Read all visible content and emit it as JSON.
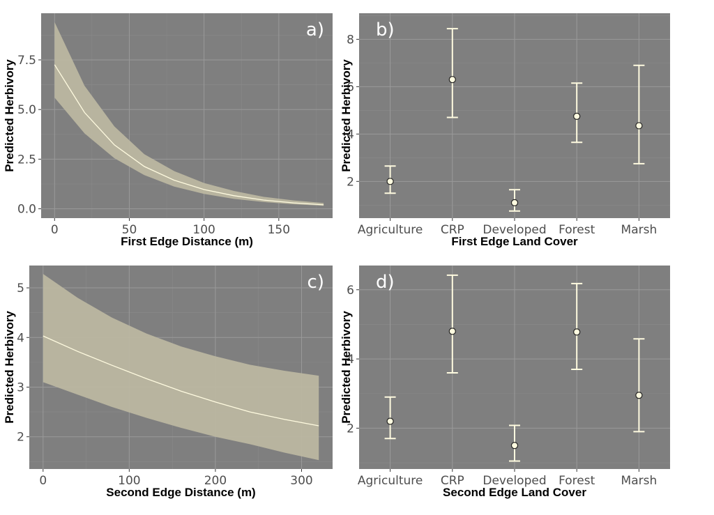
{
  "colors": {
    "panel_background": "#7f7f7f",
    "ribbon": "#bdb8a2",
    "line": "#fffbe0",
    "errorbar": "#fffbe0",
    "point_fill": "#fffbe0",
    "point_stroke": "#222222"
  },
  "chart_data": [
    {
      "type": "line",
      "panel_label": "a)",
      "xlabel": "First Edge Distance (m)",
      "ylabel": "Predicted Herbivory",
      "xlim": [
        -9,
        186
      ],
      "ylim": [
        -0.47,
        9.85
      ],
      "xticks": [
        0,
        50,
        100,
        150
      ],
      "xtick_labels": [
        "0",
        "50",
        "100",
        "150"
      ],
      "yticks": [
        0,
        2.5,
        5,
        7.5
      ],
      "ytick_labels": [
        "0.0",
        "2.5",
        "5.0",
        "7.5"
      ],
      "grid": true,
      "x": [
        0,
        20,
        40,
        60,
        80,
        100,
        120,
        140,
        160,
        180
      ],
      "y": [
        7.26,
        4.85,
        3.22,
        2.13,
        1.44,
        0.97,
        0.66,
        0.44,
        0.3,
        0.2
      ],
      "ci_lower": [
        5.6,
        3.8,
        2.55,
        1.7,
        1.12,
        0.75,
        0.5,
        0.34,
        0.23,
        0.15
      ],
      "ci_upper": [
        9.4,
        6.2,
        4.15,
        2.75,
        1.9,
        1.3,
        0.9,
        0.6,
        0.42,
        0.29
      ]
    },
    {
      "type": "scatter",
      "panel_label": "b)",
      "xlabel": "First Edge Land Cover",
      "ylabel": "Predicted Herbivory",
      "categories": [
        "Agriculture",
        "CRP",
        "Developed",
        "Forest",
        "Marsh"
      ],
      "values": [
        2.0,
        6.3,
        1.1,
        4.75,
        4.35
      ],
      "lower": [
        1.5,
        4.7,
        0.75,
        3.65,
        2.75
      ],
      "upper": [
        2.65,
        8.45,
        1.65,
        6.15,
        6.9
      ],
      "ylim": [
        0.45,
        9.1
      ],
      "yticks": [
        2,
        4,
        6,
        8
      ],
      "ytick_labels": [
        "2",
        "4",
        "6",
        "8"
      ],
      "grid": true
    },
    {
      "type": "line",
      "panel_label": "c)",
      "xlabel": "Second Edge Distance (m)",
      "ylabel": "Predicted Herbivory",
      "xlim": [
        -16,
        336
      ],
      "ylim": [
        1.35,
        5.45
      ],
      "xticks": [
        0,
        100,
        200,
        300
      ],
      "xtick_labels": [
        "0",
        "100",
        "200",
        "300"
      ],
      "yticks": [
        2,
        3,
        4,
        5
      ],
      "ytick_labels": [
        "2",
        "3",
        "4",
        "5"
      ],
      "grid": true,
      "x": [
        0,
        40,
        80,
        120,
        160,
        200,
        240,
        280,
        320
      ],
      "y": [
        4.03,
        3.72,
        3.44,
        3.17,
        2.92,
        2.7,
        2.5,
        2.35,
        2.22
      ],
      "ci_lower": [
        3.1,
        2.85,
        2.6,
        2.38,
        2.18,
        2.0,
        1.85,
        1.68,
        1.53
      ],
      "ci_upper": [
        5.28,
        4.8,
        4.4,
        4.08,
        3.82,
        3.62,
        3.45,
        3.33,
        3.23
      ]
    },
    {
      "type": "scatter",
      "panel_label": "d)",
      "xlabel": "Second Edge Land Cover",
      "ylabel": "Predicted Herbivory",
      "categories": [
        "Agriculture",
        "CRP",
        "Developed",
        "Forest",
        "Marsh"
      ],
      "values": [
        2.2,
        4.8,
        1.5,
        4.78,
        2.95
      ],
      "lower": [
        1.7,
        3.6,
        1.05,
        3.7,
        1.9
      ],
      "upper": [
        2.9,
        6.42,
        2.08,
        6.18,
        4.58
      ],
      "ylim": [
        0.82,
        6.7
      ],
      "yticks": [
        2,
        4,
        6
      ],
      "ytick_labels": [
        "2",
        "4",
        "6"
      ],
      "grid": true
    }
  ]
}
